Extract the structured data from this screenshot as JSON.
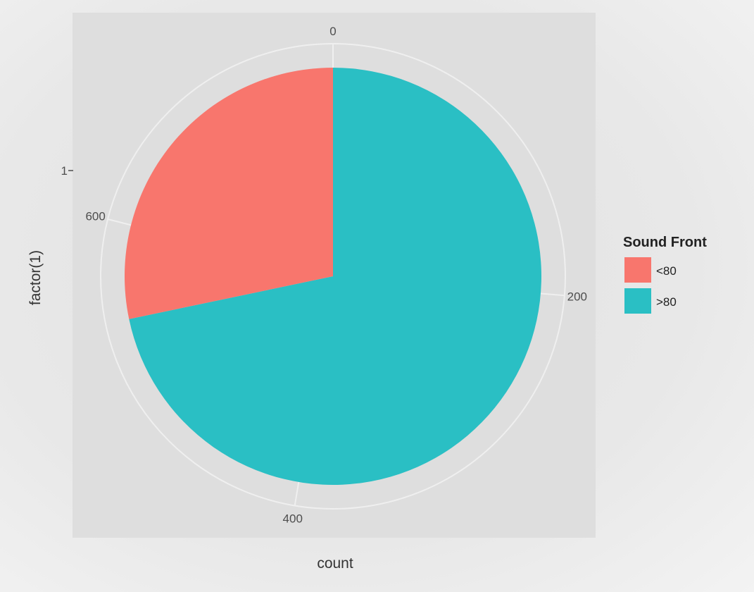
{
  "chart_data": {
    "type": "pie",
    "xlabel": "count",
    "ylabel": "factor(1)",
    "y_tick_labels": [
      "1"
    ],
    "theta_ticks": [
      0,
      200,
      400,
      600
    ],
    "total": 760,
    "slices": [
      {
        "label": ">80",
        "value": 545,
        "color": "#2abfc4"
      },
      {
        "label": "<80",
        "value": 215,
        "color": "#f8766d"
      }
    ],
    "legend": {
      "title": "Sound Front",
      "position": "right",
      "items": [
        {
          "label": "<80",
          "color": "#f8766d"
        },
        {
          "label": ">80",
          "color": "#2abfc4"
        }
      ]
    },
    "grid": true,
    "panel_background": "#dedede"
  }
}
